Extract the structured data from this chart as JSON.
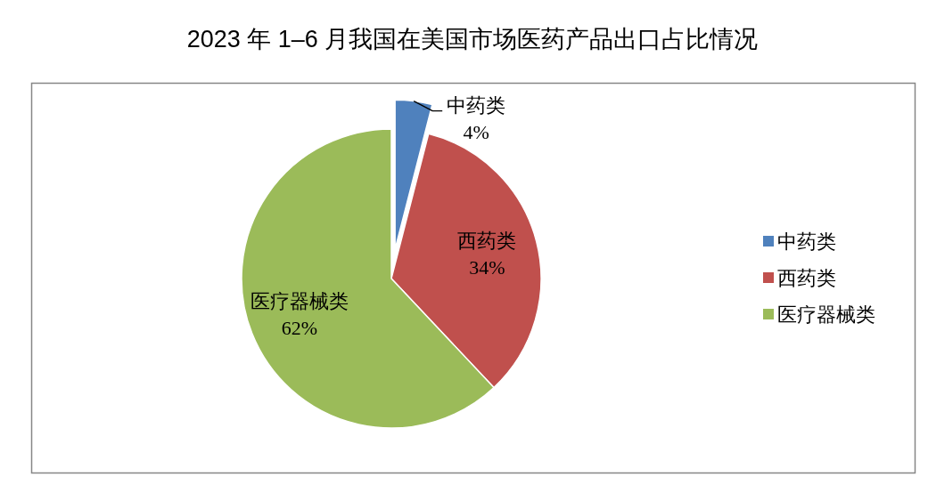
{
  "chart_data": {
    "type": "pie",
    "title": "2023 年 1–6 月我国在美国市场医药产品出口占比情况",
    "categories": [
      "中药类",
      "西药类",
      "医疗器械类"
    ],
    "values": [
      4,
      34,
      62
    ],
    "value_labels": [
      "4%",
      "34%",
      "62%"
    ],
    "colors": [
      "#4f81bd",
      "#c0504d",
      "#9bbb59"
    ],
    "legend": "right"
  }
}
